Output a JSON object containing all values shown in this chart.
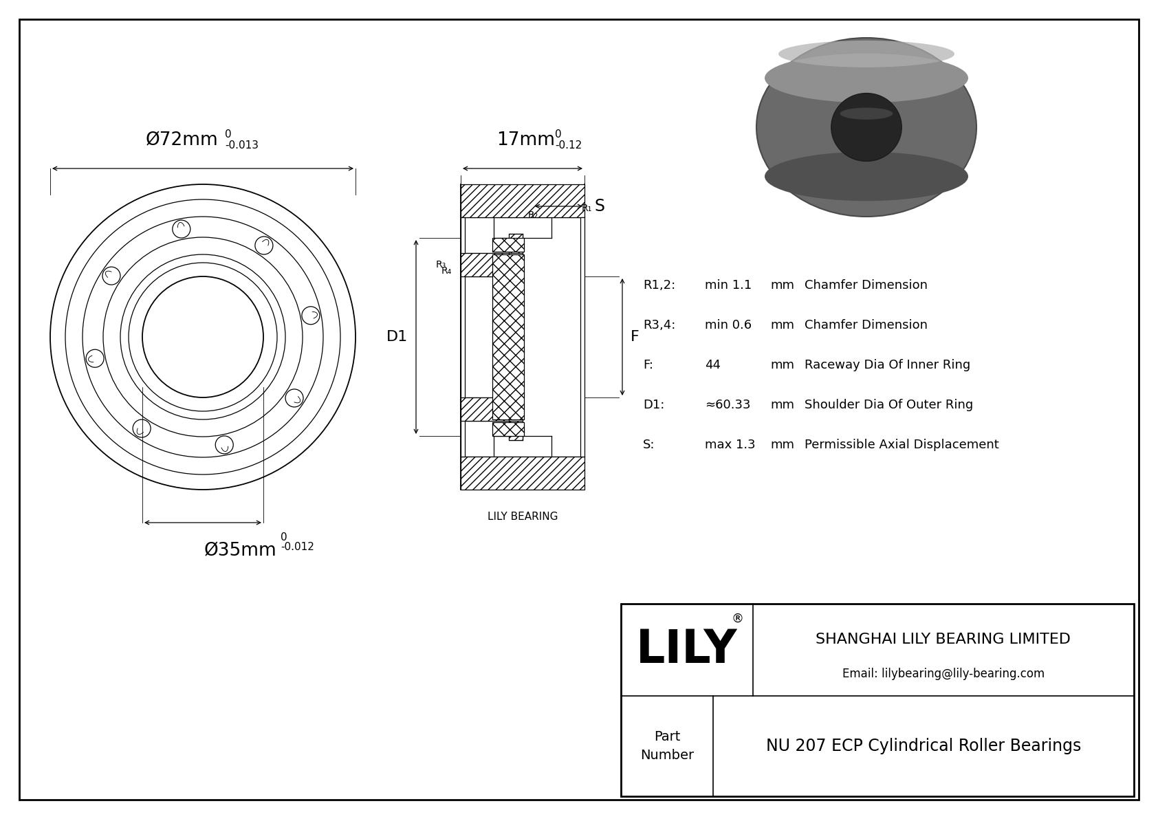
{
  "bg_color": "#ffffff",
  "line_color": "#000000",
  "title": "NU 207 ECP Cylindrical Roller Bearings",
  "company": "SHANGHAI LILY BEARING LIMITED",
  "email": "Email: lilybearing@lily-bearing.com",
  "params": [
    {
      "label": "R1,2:",
      "value": "min 1.1",
      "unit": "mm",
      "desc": "Chamfer Dimension"
    },
    {
      "label": "R3,4:",
      "value": "min 0.6",
      "unit": "mm",
      "desc": "Chamfer Dimension"
    },
    {
      "label": "F:",
      "value": "44",
      "unit": "mm",
      "desc": "Raceway Dia Of Inner Ring"
    },
    {
      "label": "D1:",
      "value": "≈60.33",
      "unit": "mm",
      "desc": "Shoulder Dia Of Outer Ring"
    },
    {
      "label": "S:",
      "value": "max 1.3",
      "unit": "mm",
      "desc": "Permissible Axial Displacement"
    }
  ],
  "watermark": "LILY BEARING",
  "outer_dia_label": "Ø72mm",
  "outer_tol_upper": "0",
  "outer_tol_lower": "-0.013",
  "inner_dia_label": "Ø35mm",
  "inner_tol_upper": "0",
  "inner_tol_lower": "-0.012",
  "width_label": "17mm",
  "width_tol_upper": "0",
  "width_tol_lower": "-0.12"
}
